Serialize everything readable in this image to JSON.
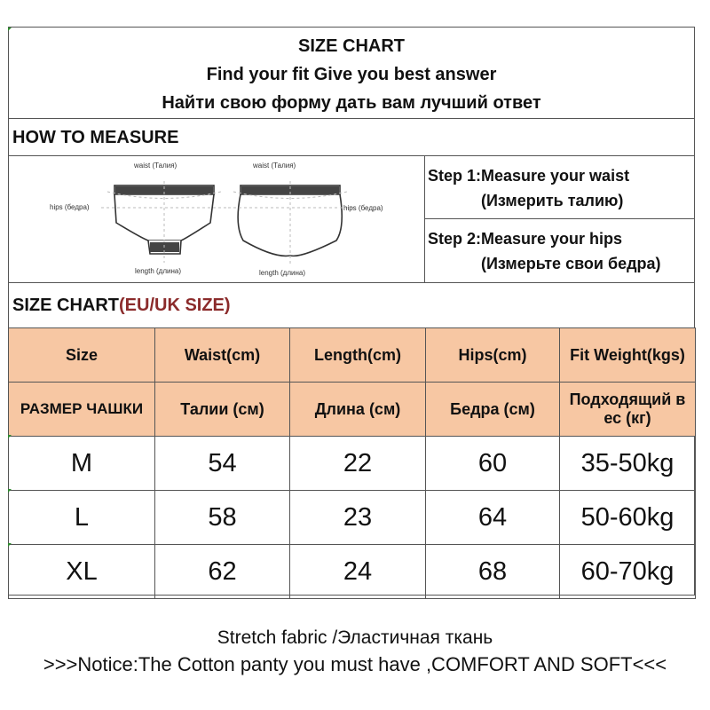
{
  "header": {
    "title": "SIZE CHART",
    "line2": "Find your fit Give you best answer",
    "line3": "Найти свою форму дать вам лучший ответ"
  },
  "how_to_measure": {
    "title": "HOW TO MEASURE",
    "diagram_labels": {
      "waist": "waist (Талия)",
      "hips": "hips (бедра)",
      "length": "length (длина)"
    },
    "step1": "Step 1:Measure your waist",
    "step1_ru": "(Измерить талию)",
    "step2": "Step 2:Measure your hips",
    "step2_ru": "(Измерьте свои бедра)"
  },
  "size_chart": {
    "title": "SIZE CHART",
    "title_accent": "(EU/UK SIZE)",
    "accent_color": "#8b2b2b",
    "header_bg": "#f7c7a3",
    "headers_en": [
      "Size",
      "Waist(cm)",
      "Length(cm)",
      "Hips(cm)",
      "Fit  Weight(kgs)"
    ],
    "headers_ru": [
      "РАЗМЕР ЧАШКИ",
      "Талии (см)",
      "Длина (см)",
      "Бедра (см)",
      "Подходящий в ес (кг)"
    ],
    "rows": [
      [
        "M",
        "54",
        "22",
        "60",
        "35-50kg"
      ],
      [
        "L",
        "58",
        "23",
        "64",
        "50-60kg"
      ],
      [
        "XL",
        "62",
        "24",
        "68",
        "60-70kg"
      ]
    ]
  },
  "footer": {
    "line1": "Stretch fabric /Эластичная ткань",
    "line2": ">>>Notice:The Cotton panty you must have ,COMFORT AND SOFT<<<"
  }
}
